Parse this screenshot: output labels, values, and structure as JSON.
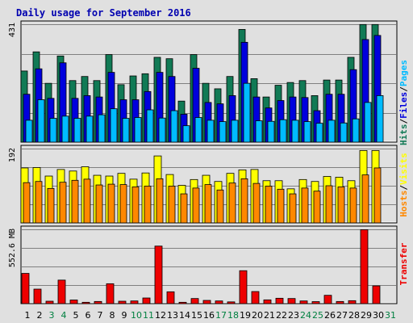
{
  "title": "Daily usage for September 2016",
  "colors": {
    "hits": "#117a55",
    "files": "#0000dd",
    "pages": "#00bbff",
    "visits": "#ffff00",
    "hosts": "#ff8800",
    "transfer": "#ee0000",
    "weekday_label": "#000000",
    "weekend_label": "#008040"
  },
  "panels": {
    "hits": {
      "max_label": "431",
      "labels": [
        "Hits",
        "Files",
        "Pages"
      ]
    },
    "visits": {
      "max_label": "192",
      "labels": [
        "Hosts",
        "Visits"
      ]
    },
    "transfer": {
      "max_label": "552.6 MB",
      "labels": [
        "Transfer"
      ]
    }
  },
  "chart_data": {
    "type": "bar",
    "title": "Daily usage for September 2016",
    "categories": [
      "1",
      "2",
      "3",
      "4",
      "5",
      "6",
      "7",
      "8",
      "9",
      "10",
      "11",
      "12",
      "13",
      "14",
      "15",
      "16",
      "17",
      "18",
      "19",
      "20",
      "21",
      "22",
      "23",
      "24",
      "25",
      "26",
      "27",
      "28",
      "29",
      "30",
      "31"
    ],
    "weekend_days": [
      "3",
      "4",
      "10",
      "11",
      "17",
      "18",
      "24",
      "25",
      "31"
    ],
    "panels": [
      {
        "name": "Hits/Files/Pages",
        "ymax": 431,
        "series": [
          {
            "name": "Hits",
            "values": [
              260,
              330,
              215,
              315,
              225,
              240,
              225,
              320,
              210,
              242,
              250,
              310,
              305,
              150,
              320,
              215,
              195,
              240,
              412,
              232,
              165,
              208,
              218,
              225,
              170,
              227,
              227,
              310,
              430,
              430,
              0
            ]
          },
          {
            "name": "Files",
            "values": [
              175,
              268,
              160,
              290,
              160,
              170,
              165,
              255,
              155,
              155,
              185,
              255,
              240,
              102,
              270,
              145,
              140,
              170,
              365,
              165,
              125,
              152,
              165,
              163,
              115,
              175,
              175,
              265,
              375,
              390,
              0
            ]
          },
          {
            "name": "Pages",
            "values": [
              80,
              155,
              87,
              95,
              87,
              95,
              100,
              122,
              87,
              90,
              118,
              88,
              115,
              60,
              90,
              80,
              75,
              80,
              215,
              78,
              76,
              82,
              80,
              75,
              69,
              80,
              70,
              85,
              145,
              170,
              0
            ]
          }
        ]
      },
      {
        "name": "Hosts/Visits",
        "ymax": 192,
        "series": [
          {
            "name": "Visits",
            "values": [
              142,
              143,
              121,
              138,
              134,
              145,
              123,
              121,
              128,
              113,
              129,
              173,
              125,
              97,
              112,
              123,
              107,
              128,
              137,
              138,
              109,
              109,
              88,
              112,
              107,
              120,
              118,
              109,
              187,
              187,
              0
            ]
          },
          {
            "name": "Hosts",
            "values": [
              104,
              107,
              89,
              105,
              110,
              113,
              98,
              100,
              99,
              93,
              95,
              114,
              95,
              75,
              90,
              99,
              85,
              103,
              114,
              102,
              95,
              87,
              75,
              90,
              82,
              96,
              93,
              90,
              124,
              142,
              0
            ]
          }
        ]
      },
      {
        "name": "Transfer",
        "ymax": 552.6,
        "unit": "MB",
        "series": [
          {
            "name": "Transfer",
            "values": [
              225,
              108,
              18,
              175,
              27,
              10,
              16,
              148,
              18,
              20,
              42,
              428,
              88,
              10,
              38,
              24,
              20,
              13,
              245,
              90,
              28,
              40,
              38,
              20,
              15,
              62,
              16,
              22,
              550,
              132,
              0
            ]
          }
        ]
      }
    ]
  }
}
